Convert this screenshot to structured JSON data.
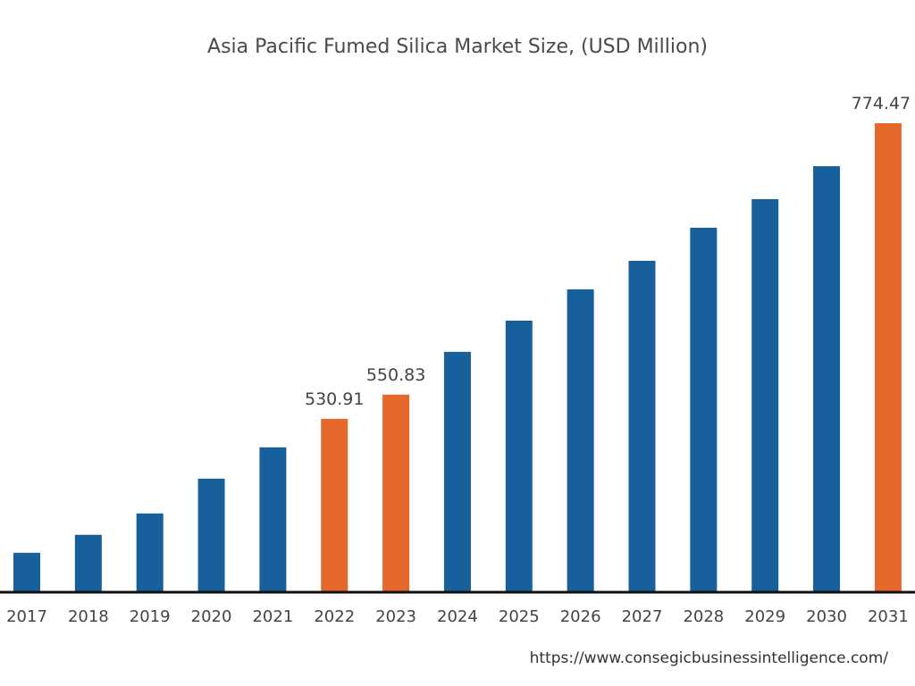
{
  "chart_data": {
    "type": "bar",
    "title": "Asia Pacific Fumed Silica Market Size, (USD Million)",
    "xlabel": "",
    "ylabel": "",
    "categories": [
      "2017",
      "2018",
      "2019",
      "2020",
      "2021",
      "2022",
      "2023",
      "2024",
      "2025",
      "2026",
      "2027",
      "2028",
      "2029",
      "2030",
      "2031"
    ],
    "values": [
      420.5,
      435.3,
      452.9,
      481.6,
      507.4,
      530.91,
      550.83,
      586.1,
      611.8,
      637.6,
      661.1,
      688.4,
      711.9,
      739.1,
      774.47
    ],
    "data_labels": {
      "2022": "530.91",
      "2023": "550.83",
      "2031": "774.47"
    },
    "highlighted": [
      "2022",
      "2023",
      "2031"
    ],
    "ylim": [
      388,
      774.47
    ],
    "grid": false,
    "legend": "none",
    "colors": {
      "default": "#17609C",
      "highlight": "#E3682A",
      "axis": "#111111",
      "text": "#444444"
    }
  },
  "source": "https://www.consegicbusinessintelligence.com/"
}
